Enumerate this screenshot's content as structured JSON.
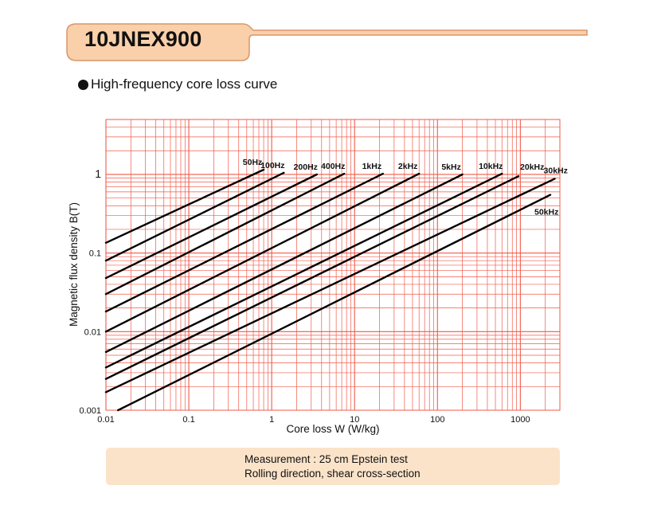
{
  "header": {
    "title": "10JNEX900",
    "subtitle": "High-frequency core loss curve"
  },
  "colors": {
    "banner_fill": "#f9d0aa",
    "banner_line": "#d9956a",
    "grid": "#f05a4a",
    "curve": "#000000",
    "note_bg": "#fbe3c9"
  },
  "chart_data": {
    "type": "line",
    "title": "",
    "xlabel": "Core loss W (W/kg)",
    "ylabel": "Magnetic flux density B(T)",
    "x_scale": "log",
    "y_scale": "log",
    "xlim": [
      0.01,
      3000
    ],
    "ylim": [
      0.001,
      5
    ],
    "grid": true,
    "x_ticks": [
      {
        "value": 0.01,
        "label": "0.01"
      },
      {
        "value": 0.1,
        "label": "0.1"
      },
      {
        "value": 1,
        "label": "1"
      },
      {
        "value": 10,
        "label": "10"
      },
      {
        "value": 100,
        "label": "100"
      },
      {
        "value": 1000,
        "label": "1000"
      }
    ],
    "y_ticks": [
      {
        "value": 0.001,
        "label": "0.001"
      },
      {
        "value": 0.01,
        "label": "0.01"
      },
      {
        "value": 0.1,
        "label": "0.1"
      },
      {
        "value": 1,
        "label": "1"
      }
    ],
    "series": [
      {
        "name": "50Hz",
        "points": [
          [
            0.01,
            0.135
          ],
          [
            0.8,
            1.15
          ]
        ]
      },
      {
        "name": "100Hz",
        "points": [
          [
            0.01,
            0.08
          ],
          [
            1.4,
            1.05
          ]
        ]
      },
      {
        "name": "200Hz",
        "points": [
          [
            0.01,
            0.048
          ],
          [
            3.5,
            1.0
          ]
        ]
      },
      {
        "name": "400Hz",
        "points": [
          [
            0.01,
            0.03
          ],
          [
            7.5,
            1.02
          ]
        ]
      },
      {
        "name": "1kHz",
        "points": [
          [
            0.01,
            0.018
          ],
          [
            22,
            1.02
          ]
        ]
      },
      {
        "name": "2kHz",
        "points": [
          [
            0.01,
            0.01
          ],
          [
            60,
            1.02
          ]
        ]
      },
      {
        "name": "5kHz",
        "points": [
          [
            0.01,
            0.0055
          ],
          [
            200,
            1.0
          ]
        ]
      },
      {
        "name": "10kHz",
        "points": [
          [
            0.01,
            0.0035
          ],
          [
            600,
            1.02
          ]
        ]
      },
      {
        "name": "20kHz",
        "points": [
          [
            0.01,
            0.0025
          ],
          [
            950,
            0.95
          ]
        ]
      },
      {
        "name": "30kHz",
        "points": [
          [
            0.01,
            0.0017
          ],
          [
            2600,
            0.88
          ]
        ]
      },
      {
        "name": "50kHz",
        "points": [
          [
            0.014,
            0.001
          ],
          [
            2300,
            0.55
          ]
        ]
      }
    ]
  },
  "note": {
    "line1": "Measurement : 25 cm Epstein test",
    "line2": "Rolling direction, shear cross-section"
  }
}
